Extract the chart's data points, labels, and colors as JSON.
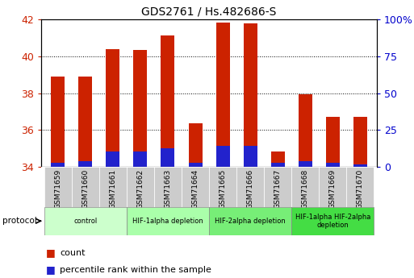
{
  "title": "GDS2761 / Hs.482686-S",
  "samples": [
    "GSM71659",
    "GSM71660",
    "GSM71661",
    "GSM71662",
    "GSM71663",
    "GSM71664",
    "GSM71665",
    "GSM71666",
    "GSM71667",
    "GSM71668",
    "GSM71669",
    "GSM71670"
  ],
  "count_values": [
    38.9,
    38.9,
    40.4,
    40.35,
    41.15,
    36.35,
    41.85,
    41.8,
    34.85,
    37.95,
    36.7,
    36.7
  ],
  "percentile_values": [
    34.2,
    34.3,
    34.85,
    34.85,
    35.0,
    34.2,
    35.15,
    35.15,
    34.2,
    34.3,
    34.2,
    34.15
  ],
  "y_min": 34,
  "y_max": 42,
  "y_ticks_left": [
    34,
    36,
    38,
    40,
    42
  ],
  "y_ticks_right_vals": [
    34,
    36,
    38,
    40,
    42
  ],
  "y_ticks_right_labels": [
    "0",
    "25",
    "50",
    "75",
    "100%"
  ],
  "bar_color": "#cc2200",
  "blue_color": "#2222cc",
  "protocol_groups": [
    {
      "label": "control",
      "start": 0,
      "end": 2,
      "color": "#ccffcc"
    },
    {
      "label": "HIF-1alpha depletion",
      "start": 3,
      "end": 5,
      "color": "#aaffaa"
    },
    {
      "label": "HIF-2alpha depletion",
      "start": 6,
      "end": 8,
      "color": "#77ee77"
    },
    {
      "label": "HIF-1alpha HIF-2alpha\ndepletion",
      "start": 9,
      "end": 11,
      "color": "#44dd44"
    }
  ],
  "tick_color_left": "#cc2200",
  "tick_color_right": "#0000cc",
  "sample_box_color": "#cccccc",
  "bar_width": 0.5
}
